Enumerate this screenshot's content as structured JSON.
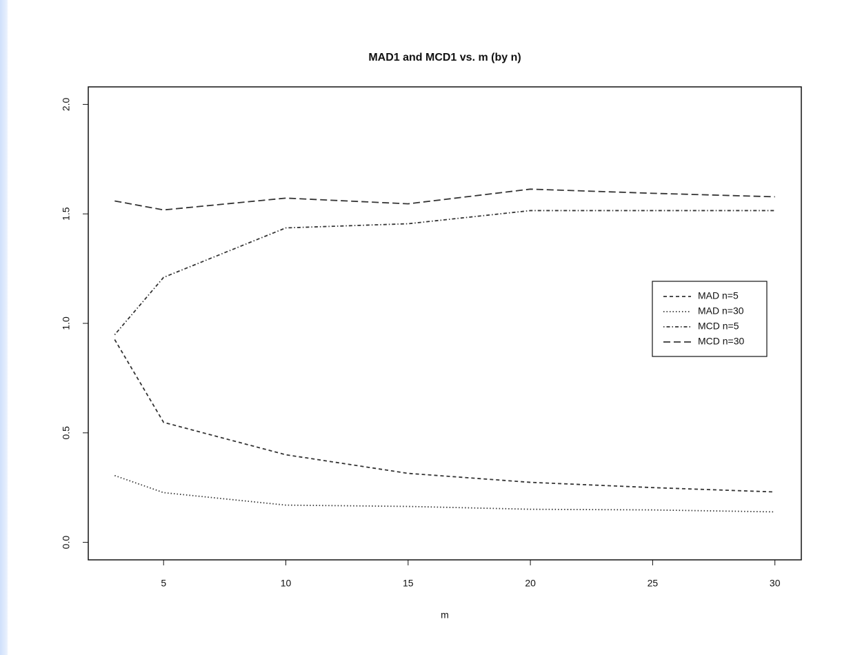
{
  "chart_data": {
    "type": "line",
    "title": "MAD1 and MCD1 vs. m (by n)",
    "x_label": "m",
    "x": [
      3,
      5,
      10,
      15,
      20,
      25,
      30
    ],
    "series": [
      {
        "name": "MAD n=5",
        "color": "#333333",
        "line_style": "dashed",
        "values": [
          0.926,
          0.548,
          0.4,
          0.315,
          0.274,
          0.25,
          0.23
        ]
      },
      {
        "name": "MAD n=30",
        "color": "#333333",
        "line_style": "dotted",
        "values": [
          0.305,
          0.227,
          0.17,
          0.164,
          0.151,
          0.148,
          0.139
        ]
      },
      {
        "name": "MCD n=5",
        "color": "#333333",
        "line_style": "dotdash",
        "values": [
          0.948,
          1.21,
          1.436,
          1.455,
          1.515,
          1.515,
          1.515
        ]
      },
      {
        "name": "MCD n=30",
        "color": "#333333",
        "line_style": "longdash",
        "values": [
          1.559,
          1.518,
          1.572,
          1.546,
          1.613,
          1.594,
          1.578
        ]
      }
    ],
    "xlim": [
      1.92,
      31.08
    ],
    "xticks": [
      5,
      10,
      15,
      20,
      25,
      30
    ],
    "ylim": [
      -0.08,
      2.08
    ],
    "yticks": [
      0.0,
      0.5,
      1.0,
      1.5,
      2.0
    ],
    "legend": "right",
    "grid": false
  }
}
